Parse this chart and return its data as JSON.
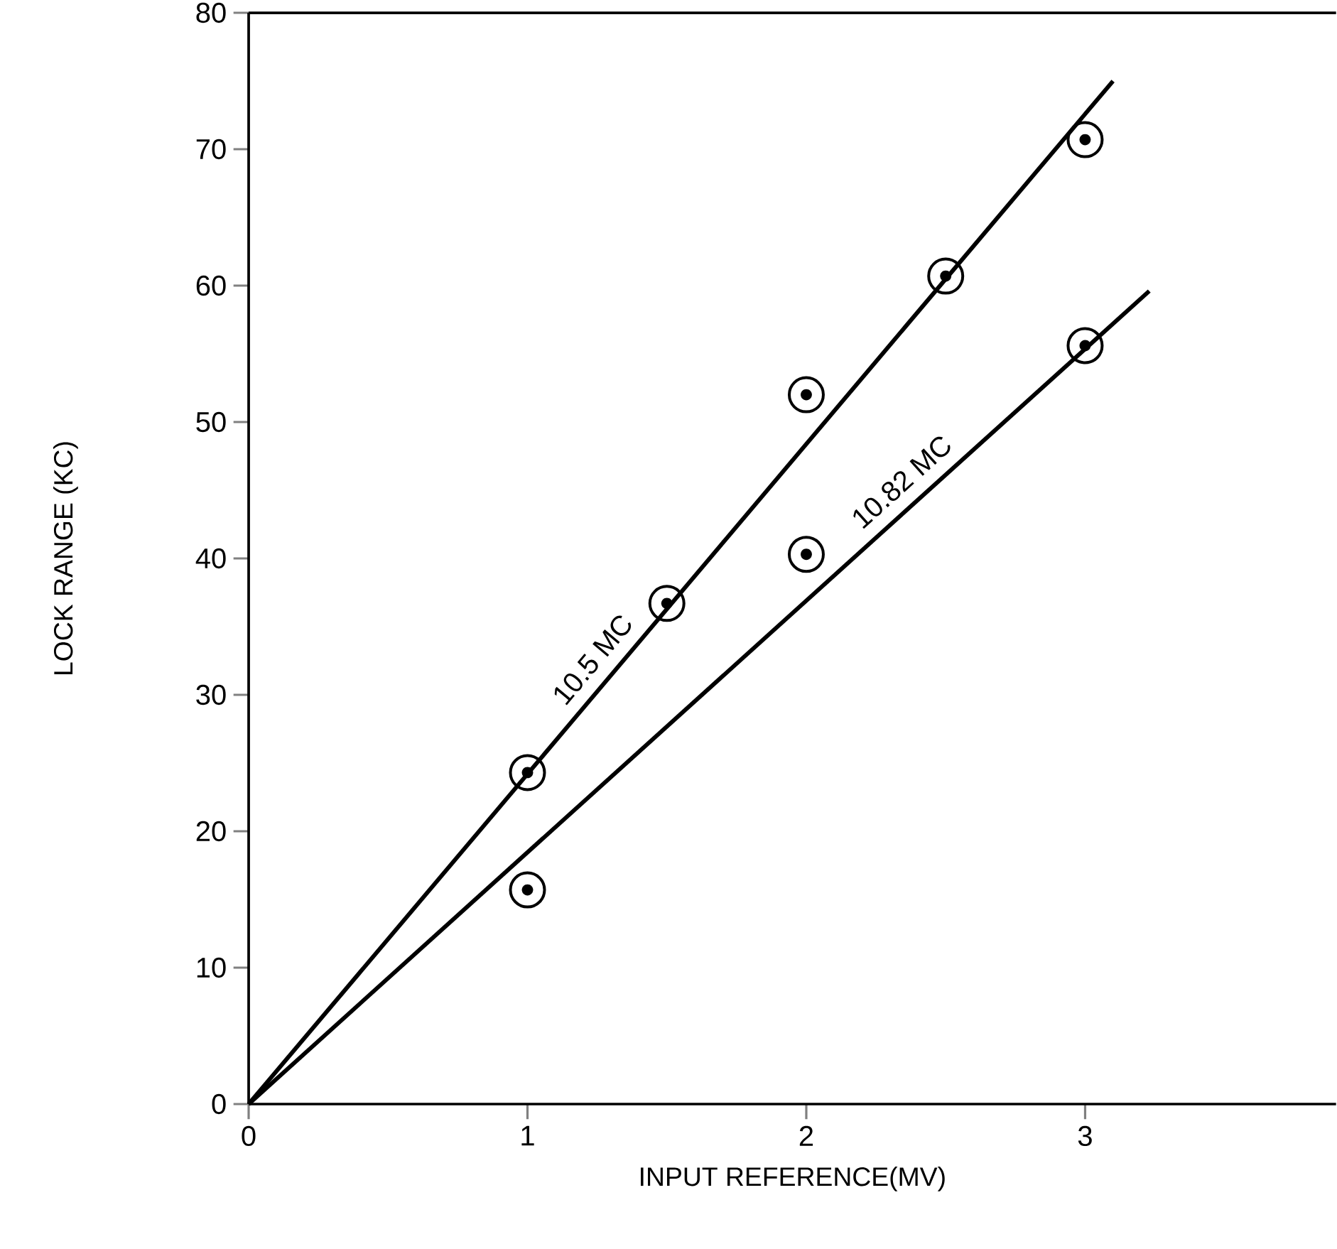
{
  "chart_data": {
    "type": "scatter",
    "xlabel": "INPUT REFERENCE(MV)",
    "ylabel": "LOCK RANGE (KC)",
    "xlim": [
      0,
      3.9
    ],
    "ylim": [
      0,
      80
    ],
    "xticks": [
      0,
      1,
      2,
      3
    ],
    "yticks": [
      0,
      10,
      20,
      30,
      40,
      50,
      60,
      70,
      80
    ],
    "grid": false,
    "marker": "circle",
    "series": [
      {
        "color": "#000000",
        "x": [
          1,
          1.5,
          2,
          2.5,
          3
        ],
        "values": [
          24.3,
          36.7,
          52,
          60.7,
          70.7
        ]
      },
      {
        "color": "#000000",
        "x": [
          1,
          2,
          3
        ],
        "values": [
          15.7,
          40.3,
          55.6
        ]
      },
      {
        "type": "line",
        "color": "#000000",
        "marker": "none",
        "line_style": "solid",
        "x": [
          0,
          3.1
        ],
        "values": [
          0,
          75
        ]
      },
      {
        "type": "line",
        "color": "#000000",
        "marker": "none",
        "line_style": "solid",
        "x": [
          0,
          3.23
        ],
        "values": [
          0,
          59.6
        ]
      }
    ],
    "annotations": [
      {
        "text": "10.5 MC",
        "x": 1.3,
        "y": 31.45
      },
      {
        "text": "10.82 MC",
        "x": 2.4,
        "y": 44.3
      }
    ]
  }
}
